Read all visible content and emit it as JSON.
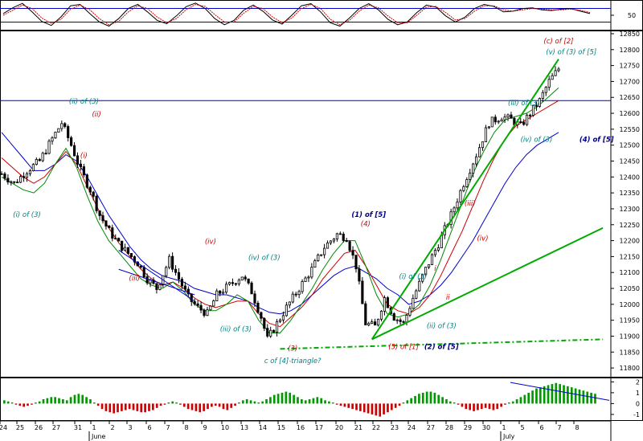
{
  "chart_data": [
    {
      "type": "line",
      "panel": "oscillator",
      "title": "",
      "ylabel": "",
      "y_ticks": [
        50
      ],
      "reference_lines": [
        70,
        30
      ],
      "ylim": [
        5,
        95
      ],
      "series": [
        {
          "values": [
            55,
            72,
            85,
            60,
            32,
            20,
            45,
            78,
            82,
            55,
            30,
            18,
            40,
            70,
            82,
            60,
            35,
            25,
            48,
            75,
            86,
            70,
            40,
            22,
            35,
            65,
            80,
            62,
            36,
            24,
            50,
            78,
            84,
            60,
            28,
            18,
            42,
            70,
            84,
            66,
            38,
            22,
            30,
            58,
            80,
            74,
            48,
            30,
            44,
            70,
            82,
            76,
            60,
            62,
            70,
            72,
            66,
            64,
            68,
            70,
            62,
            55
          ]
        },
        {
          "values": [
            50,
            65,
            80,
            70,
            42,
            26,
            38,
            68,
            80,
            66,
            40,
            22,
            32,
            60,
            78,
            70,
            45,
            28,
            40,
            66,
            82,
            76,
            52,
            30,
            30,
            56,
            76,
            70,
            45,
            28,
            42,
            70,
            82,
            70,
            38,
            22,
            35,
            62,
            80,
            72,
            48,
            28,
            28,
            50,
            74,
            76,
            58,
            36,
            40,
            62,
            78,
            78,
            66,
            62,
            66,
            70,
            68,
            66,
            66,
            68,
            65,
            58
          ]
        }
      ],
      "colors": {
        "k": "#000000",
        "d": "#cc0000",
        "ref": "#0000cc"
      }
    },
    {
      "type": "candlestick",
      "panel": "price",
      "title": "",
      "xlabel": "",
      "ylabel": "",
      "ylim": [
        11770,
        12860
      ],
      "y_ticks": [
        11800,
        11850,
        11900,
        11950,
        12000,
        12050,
        12100,
        12150,
        12200,
        12250,
        12300,
        12350,
        12400,
        12450,
        12500,
        12550,
        12600,
        12650,
        12700,
        12750,
        12800,
        12850
      ],
      "x_tick_labels": [
        "24",
        "25",
        "26",
        "27",
        "31",
        "1",
        "2",
        "3",
        "6",
        "7",
        "8",
        "9",
        "10",
        "13",
        "14",
        "15",
        "16",
        "17",
        "20",
        "21",
        "22",
        "23",
        "24",
        "27",
        "28",
        "29",
        "30",
        "1",
        "5",
        "6",
        "7",
        "8"
      ],
      "month_labels": [
        "June",
        "July"
      ],
      "horizontal_line": 12640,
      "price_path": [
        [
          0,
          12410
        ],
        [
          4,
          12380
        ],
        [
          8,
          12420
        ],
        [
          12,
          12450
        ],
        [
          16,
          12520
        ],
        [
          19,
          12570
        ],
        [
          22,
          12500
        ],
        [
          25,
          12420
        ],
        [
          28,
          12360
        ],
        [
          31,
          12280
        ],
        [
          34,
          12230
        ],
        [
          37,
          12190
        ],
        [
          40,
          12160
        ],
        [
          43,
          12130
        ],
        [
          46,
          12080
        ],
        [
          49,
          12050
        ],
        [
          53,
          12140
        ],
        [
          56,
          12080
        ],
        [
          59,
          12020
        ],
        [
          62,
          11990
        ],
        [
          65,
          11970
        ],
        [
          68,
          12030
        ],
        [
          72,
          12060
        ],
        [
          76,
          12090
        ],
        [
          79,
          12040
        ],
        [
          82,
          11960
        ],
        [
          84,
          11890
        ],
        [
          87,
          11940
        ],
        [
          90,
          11990
        ],
        [
          94,
          12050
        ],
        [
          98,
          12110
        ],
        [
          102,
          12180
        ],
        [
          106,
          12220
        ],
        [
          109,
          12210
        ],
        [
          112,
          12120
        ],
        [
          115,
          11940
        ],
        [
          118,
          11930
        ],
        [
          121,
          12020
        ],
        [
          124,
          11960
        ],
        [
          127,
          11940
        ],
        [
          130,
          12020
        ],
        [
          134,
          12110
        ],
        [
          138,
          12190
        ],
        [
          142,
          12280
        ],
        [
          146,
          12380
        ],
        [
          150,
          12470
        ],
        [
          154,
          12570
        ],
        [
          158,
          12590
        ],
        [
          161,
          12580
        ],
        [
          164,
          12560
        ],
        [
          167,
          12600
        ],
        [
          170,
          12640
        ],
        [
          173,
          12700
        ],
        [
          176,
          12740
        ]
      ],
      "moving_averages": [
        {
          "name": "",
          "color": "#0000cc",
          "values": [
            12540,
            12500,
            12460,
            12420,
            12420,
            12440,
            12470,
            12450,
            12400,
            12340,
            12280,
            12230,
            12180,
            12140,
            12110,
            12090,
            12080,
            12070,
            12050,
            12040,
            12030,
            12030,
            12020,
            12010,
            11990,
            11975,
            11970,
            11980,
            12000,
            12030,
            12060,
            12090,
            12110,
            12120,
            12100,
            12080,
            12050,
            12030,
            12000,
            12010,
            12030,
            12060,
            12100,
            12150,
            12200,
            12260,
            12320,
            12380,
            12430,
            12470,
            12500,
            12520,
            12540
          ]
        },
        {
          "name": "",
          "color": "#cc0000",
          "values": [
            12460,
            12430,
            12400,
            12380,
            12400,
            12440,
            12480,
            12440,
            12370,
            12300,
            12240,
            12190,
            12150,
            12110,
            12080,
            12060,
            12070,
            12050,
            12020,
            12000,
            11990,
            12000,
            12010,
            12010,
            11970,
            11940,
            11930,
            11960,
            11990,
            12030,
            12080,
            12120,
            12160,
            12170,
            12120,
            12060,
            12000,
            11980,
            11970,
            11990,
            12030,
            12090,
            12160,
            12230,
            12310,
            12390,
            12460,
            12520,
            12560,
            12580,
            12600,
            12620,
            12640
          ]
        },
        {
          "name": "",
          "color": "#008800",
          "values": [
            12400,
            12380,
            12360,
            12350,
            12380,
            12440,
            12490,
            12430,
            12340,
            12260,
            12200,
            12160,
            12120,
            12080,
            12060,
            12050,
            12070,
            12040,
            12000,
            11980,
            11980,
            12000,
            12030,
            12010,
            11950,
            11910,
            11910,
            11950,
            12000,
            12050,
            12110,
            12160,
            12200,
            12200,
            12120,
            12030,
            11970,
            11960,
            11970,
            12000,
            12060,
            12140,
            12230,
            12320,
            12410,
            12480,
            12540,
            12580,
            12590,
            12600,
            12620,
            12650,
            12680
          ]
        }
      ],
      "trendlines": [
        {
          "color": "#00aa00",
          "from": [
            117,
            11890
          ],
          "to": [
            176,
            12770
          ]
        },
        {
          "color": "#00aa00",
          "from": [
            117,
            11890
          ],
          "to": [
            190,
            12240
          ]
        },
        {
          "color": "#00aa00",
          "from": [
            88,
            11860
          ],
          "to": [
            190,
            11890
          ],
          "style": "dash-dot"
        },
        {
          "color": "#0000cc",
          "from": [
            37,
            12170
          ],
          "to": [
            61,
            12010
          ]
        },
        {
          "color": "#0000cc",
          "from": [
            37,
            12110
          ],
          "to": [
            61,
            12030
          ]
        }
      ],
      "wave_labels": [
        {
          "text": "(ii) of (3)",
          "color": "teal",
          "at": [
            26,
            12630
          ]
        },
        {
          "text": "(ii)",
          "color": "red",
          "at": [
            30,
            12590
          ]
        },
        {
          "text": "(i)",
          "color": "red",
          "at": [
            26,
            12460
          ]
        },
        {
          "text": "(i) of (3)",
          "color": "teal",
          "at": [
            8,
            12275
          ]
        },
        {
          "text": "(iii)",
          "color": "red",
          "at": [
            42,
            12075
          ]
        },
        {
          "text": "(iv)",
          "color": "red",
          "at": [
            66,
            12190
          ]
        },
        {
          "text": "(iv) of (3)",
          "color": "teal",
          "at": [
            83,
            12140
          ]
        },
        {
          "text": "(iii) of (3)",
          "color": "teal",
          "at": [
            74,
            11915
          ]
        },
        {
          "text": "(3)",
          "color": "red",
          "at": [
            92,
            11855
          ]
        },
        {
          "text": "c of [4]-triangle?",
          "color": "teal",
          "at": [
            92,
            11815
          ]
        },
        {
          "text": "(1) of [5]",
          "color": "navy",
          "at": [
            116,
            12275
          ]
        },
        {
          "text": "(4)",
          "color": "red",
          "at": [
            115,
            12245
          ]
        },
        {
          "text": "(i) of (3)",
          "color": "teal",
          "at": [
            130,
            12080
          ]
        },
        {
          "text": "i",
          "color": "red",
          "at": [
            137,
            12105
          ]
        },
        {
          "text": "ii",
          "color": "red",
          "at": [
            141,
            12015
          ]
        },
        {
          "text": "(ii) of (3)",
          "color": "teal",
          "at": [
            139,
            11925
          ]
        },
        {
          "text": "(5) of [1]",
          "color": "red",
          "at": [
            127,
            11860
          ]
        },
        {
          "text": "(2) of [5]",
          "color": "navy",
          "at": [
            139,
            11860
          ]
        },
        {
          "text": "(iii)",
          "color": "red",
          "at": [
            148,
            12310
          ]
        },
        {
          "text": "(iv)",
          "color": "red",
          "at": [
            152,
            12200
          ]
        },
        {
          "text": "(iii) of (3)",
          "color": "teal",
          "at": [
            165,
            12625
          ]
        },
        {
          "text": "(iv) of (3)",
          "color": "teal",
          "at": [
            169,
            12510
          ]
        },
        {
          "text": "(c) of [2]",
          "color": "red",
          "at": [
            176,
            12820
          ]
        },
        {
          "text": "(v) of (3) of [5]",
          "color": "teal",
          "at": [
            180,
            12785
          ]
        },
        {
          "text": "(4) of [5]",
          "color": "navy",
          "at": [
            188,
            12510
          ]
        }
      ],
      "colors": {
        "up": "#ffffff",
        "down": "#000000",
        "line": "#000000",
        "hline": "#0000cc"
      }
    },
    {
      "type": "bar",
      "panel": "histogram",
      "title": "",
      "ylim": [
        -1.6,
        2.4
      ],
      "y_ticks": [
        2,
        1,
        0,
        -1
      ],
      "values": [
        0.3,
        0.2,
        0.1,
        -0.1,
        -0.2,
        -0.3,
        -0.2,
        -0.1,
        0.1,
        0.2,
        0.4,
        0.5,
        0.6,
        0.6,
        0.5,
        0.4,
        0.3,
        0.6,
        0.8,
        0.9,
        0.8,
        0.6,
        0.4,
        0.1,
        -0.2,
        -0.5,
        -0.7,
        -0.8,
        -0.9,
        -0.8,
        -0.7,
        -0.6,
        -0.5,
        -0.6,
        -0.7,
        -0.8,
        -0.8,
        -0.7,
        -0.6,
        -0.4,
        -0.2,
        -0.1,
        0.1,
        0.2,
        0.1,
        -0.1,
        -0.3,
        -0.5,
        -0.6,
        -0.7,
        -0.8,
        -0.7,
        -0.5,
        -0.3,
        -0.2,
        -0.3,
        -0.5,
        -0.6,
        -0.4,
        -0.2,
        0.1,
        0.3,
        0.4,
        0.3,
        0.2,
        0.1,
        0.2,
        0.4,
        0.6,
        0.8,
        0.9,
        1.0,
        1.1,
        1.0,
        0.8,
        0.6,
        0.4,
        0.3,
        0.4,
        0.5,
        0.6,
        0.5,
        0.3,
        0.2,
        0.1,
        -0.1,
        -0.2,
        -0.3,
        -0.4,
        -0.5,
        -0.6,
        -0.7,
        -0.8,
        -0.9,
        -1.0,
        -1.1,
        -1.2,
        -1.0,
        -0.8,
        -0.6,
        -0.4,
        -0.2,
        0.1,
        0.3,
        0.5,
        0.7,
        0.9,
        1.0,
        1.1,
        1.1,
        1.0,
        0.8,
        0.6,
        0.4,
        0.2,
        0.1,
        -0.1,
        -0.3,
        -0.5,
        -0.6,
        -0.7,
        -0.6,
        -0.5,
        -0.4,
        -0.5,
        -0.6,
        -0.5,
        -0.3,
        -0.1,
        0.1,
        0.2,
        0.4,
        0.6,
        0.8,
        1.0,
        1.2,
        1.4,
        1.5,
        1.6,
        1.7,
        1.8,
        1.9,
        1.8,
        1.7,
        1.6,
        1.5,
        1.4,
        1.3,
        1.2,
        1.1,
        1.0,
        0.9
      ],
      "colors": {
        "pos": "#009900",
        "neg": "#cc0000",
        "trend": "#0000cc"
      }
    }
  ]
}
